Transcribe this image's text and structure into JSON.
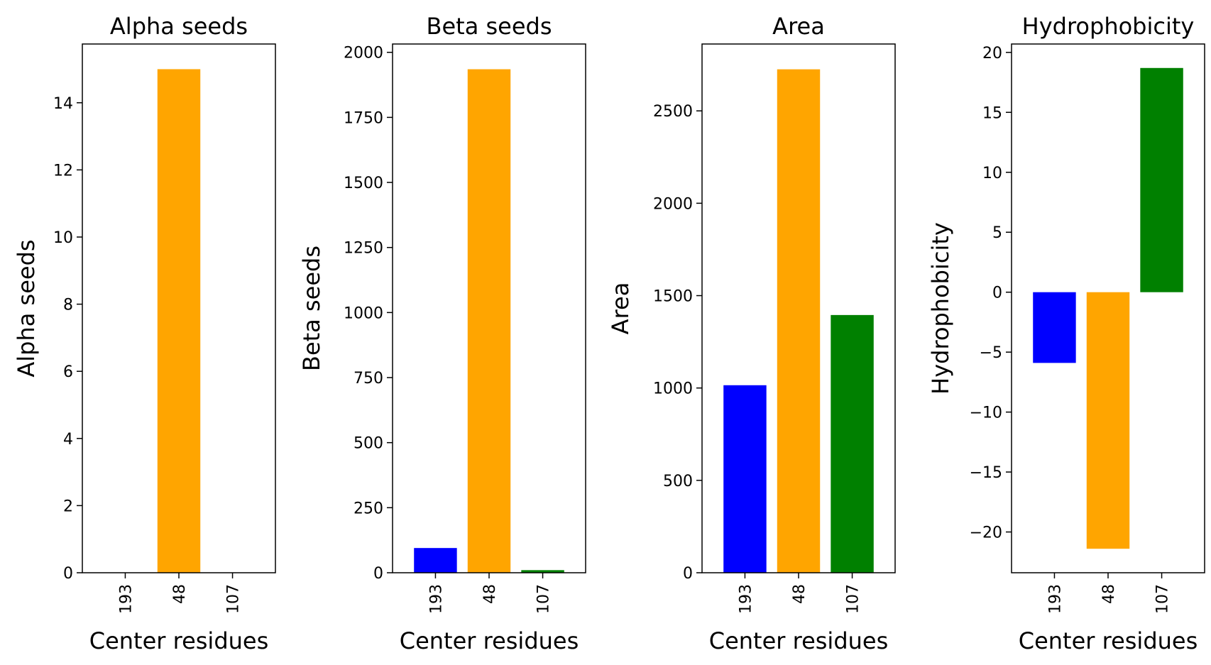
{
  "chart_data": [
    {
      "type": "bar",
      "title": "Alpha seeds",
      "xlabel": "Center residues",
      "ylabel": "Alpha seeds",
      "categories": [
        "193",
        "48",
        "107"
      ],
      "values": [
        0,
        15,
        0
      ],
      "colors": [
        "#0000ff",
        "#ffa500",
        "#008000"
      ],
      "ylim": [
        0,
        15.75
      ],
      "yticks": [
        0,
        2,
        4,
        6,
        8,
        10,
        12,
        14
      ],
      "ytick_labels": [
        "0",
        "2",
        "4",
        "6",
        "8",
        "10",
        "12",
        "14"
      ],
      "grid": false
    },
    {
      "type": "bar",
      "title": "Beta seeds",
      "xlabel": "Center residues",
      "ylabel": "Beta seeds",
      "categories": [
        "193",
        "48",
        "107"
      ],
      "values": [
        95,
        1935,
        10
      ],
      "colors": [
        "#0000ff",
        "#ffa500",
        "#008000"
      ],
      "ylim": [
        0,
        2032
      ],
      "yticks": [
        0,
        250,
        500,
        750,
        1000,
        1250,
        1500,
        1750,
        2000
      ],
      "ytick_labels": [
        "0",
        "250",
        "500",
        "750",
        "1000",
        "1250",
        "1500",
        "1750",
        "2000"
      ],
      "grid": false
    },
    {
      "type": "bar",
      "title": "Area",
      "xlabel": "Center residues",
      "ylabel": "Area",
      "categories": [
        "193",
        "48",
        "107"
      ],
      "values": [
        1015,
        2725,
        1395
      ],
      "colors": [
        "#0000ff",
        "#ffa500",
        "#008000"
      ],
      "ylim": [
        0,
        2862
      ],
      "yticks": [
        0,
        500,
        1000,
        1500,
        2000,
        2500
      ],
      "ytick_labels": [
        "0",
        "500",
        "1000",
        "1500",
        "2000",
        "2500"
      ],
      "grid": false
    },
    {
      "type": "bar",
      "title": "Hydrophobicity",
      "xlabel": "Center residues",
      "ylabel": "Hydrophobicity",
      "categories": [
        "193",
        "48",
        "107"
      ],
      "values": [
        -5.9,
        -21.4,
        18.7
      ],
      "colors": [
        "#0000ff",
        "#ffa500",
        "#008000"
      ],
      "ylim": [
        -23.4,
        20.7
      ],
      "yticks": [
        -20,
        -15,
        -10,
        -5,
        0,
        5,
        10,
        15,
        20
      ],
      "ytick_labels": [
        "−20",
        "−15",
        "−10",
        "−5",
        "0",
        "5",
        "10",
        "15",
        "20"
      ],
      "grid": false
    }
  ]
}
